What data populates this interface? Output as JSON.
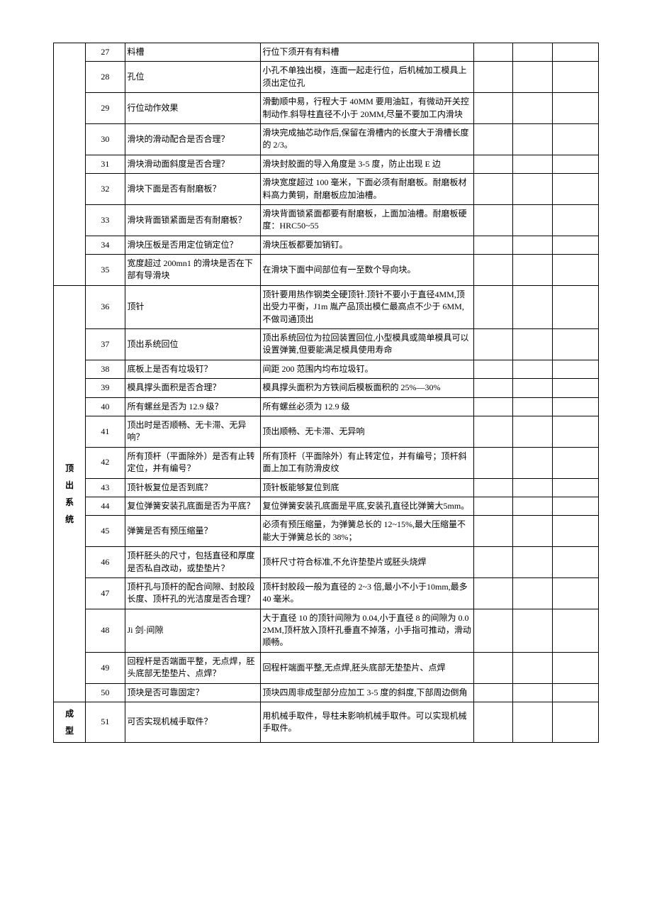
{
  "groups": [
    {
      "category": "",
      "rows": [
        {
          "n": "27",
          "item": "料槽",
          "std": "行位下须开有有料槽"
        },
        {
          "n": "28",
          "item": "孔位",
          "std": "小孔不单独出模，连面一起走行位，后机械加工模具上须出定位孔"
        },
        {
          "n": "29",
          "item": "行位动作效果",
          "std": "滑動顺中易，行程大于 40MM 要用油缸，有微动开关控制动作.斜导柱直径不小于 20MM,尽量不要加工内滑块"
        },
        {
          "n": "30",
          "item": "滑块的滑动配合是否合理？",
          "std": "滑块完成抽芯动作后,保留在滑槽内的长度大于滑槽长度的 2/3。"
        },
        {
          "n": "31",
          "item": "滑块滑动面斜度是否合理？",
          "std": "滑块封胶面的导入角度是 3-5 度，防止出现 E 边"
        },
        {
          "n": "32",
          "item": "滑块下面是否有耐磨板？",
          "std": "滑块宽度超过 100 毫米，下面必须有耐磨板。耐磨板材料高力黄铜，耐磨板应加油槽。"
        },
        {
          "n": "33",
          "item": "滑块背面锁紧面是否有耐磨板？",
          "std": "滑块背面锁紧面都要有耐磨板，上面加油槽。耐磨板硬度：HRC50~55"
        },
        {
          "n": "34",
          "item": "滑块压板是否用定位销定位？",
          "std": "滑块压板都要加销钉。"
        },
        {
          "n": "35",
          "item": "宽度超过 200mn1 的滑块是否在下部有导滑块",
          "std": "在滑块下面中间部位有一至数个导向块。"
        }
      ]
    },
    {
      "category": "顶出系统",
      "rows": [
        {
          "n": "36",
          "item": "顶针",
          "std": "顶针要用热作钢类全硬顶针.顶针不要小于直径4MM,顶出受力平衡，J1m 胤产品顶出模仁最高点不少于 6MM,不做司通顶出"
        },
        {
          "n": "37",
          "item": "顶出系统回位",
          "std": "顶出系统回位为拉回装置回位,小型模具或简单模具可以设置弹簧,但要能满足模具使用寿命"
        },
        {
          "n": "38",
          "item": "底板上是否有垃圾钉？",
          "std": "间距 200 范围内均布垃圾钉。"
        },
        {
          "n": "39",
          "item": "模具撑头面积是否合理？",
          "std": "模具撑头面积为方铁间后模板面积的 25%—30%"
        },
        {
          "n": "40",
          "item": "所有螺丝是否为 12.9 级？",
          "std": "所有螺丝必须为 12.9 级"
        },
        {
          "n": "41",
          "item": "顶出时是否顺畅、无卡滞、无异响？",
          "std": "顶出顺畅、无卡滞、无异响"
        },
        {
          "n": "42",
          "item": "所有顶杆（平面除外）是否有止转定位，并有编号？",
          "std": "所有顶杆（平面除外）有止转定位，并有编号；顶杆斜面上加工有防滑皮纹"
        },
        {
          "n": "43",
          "item": "顶针板复位是否到底？",
          "std": "顶针板能够复位到底"
        },
        {
          "n": "44",
          "item": "复位弹簧安装孔底面是否为平底？",
          "std": "复位弹簧安装孔底面是平底,安装孔直径比弹簧大5mm。"
        },
        {
          "n": "45",
          "item": "弹簧是否有预压缩量？",
          "std": "必须有预压缩量，为弹簧总长的 12~15%,最大压缩量不能大于弹簧总长的 38%；"
        },
        {
          "n": "46",
          "item": "顶杆胚头的尺寸，包括直径和厚度是否私自改动，或垫垫片？",
          "std": "顶杆尺寸符合标准,不允许垫垫片或胚头烧焊"
        },
        {
          "n": "47",
          "item": "顶杆孔与顶杆的配合间隙、封胶段长度、顶杆孔的光洁度是否合理？",
          "std": "顶杆封胶段一般为直径的 2~3 倍,最小不小于10mm,最多 40 毫米。"
        },
        {
          "n": "48",
          "item": "Ji 剑·间隙",
          "std": "大于直径 10 的顶针间隙为 0.04,小于直径 8 的间隙为 0.02MM,顶杆放入顶杆孔垂直不掉落，小手指可推动，滑动顺畅。"
        },
        {
          "n": "49",
          "item": "回程杆是否端面平整，无点焊，胚头底部无垫垫片、点焊？",
          "std": "回程杆端面平整,无点焊,胚头底部无垫垫片、点焊"
        },
        {
          "n": "50",
          "item": "顶块是否可靠固定？",
          "std": "顶块四周非成型部分应加工 3-5 度的斜度,下部周边倒角"
        }
      ]
    },
    {
      "category": "成型",
      "rows": [
        {
          "n": "51",
          "item": "可否实现机械手取件？",
          "std": "用机械手取件，导柱未影响机械手取件。可以实现机械手取件。"
        }
      ]
    }
  ]
}
